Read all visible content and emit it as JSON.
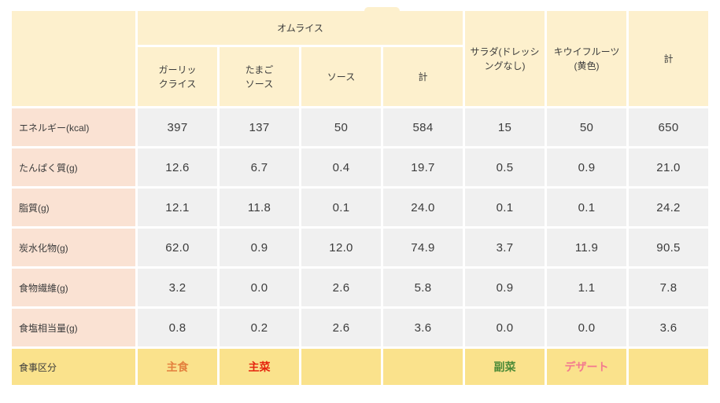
{
  "table": {
    "group_label": "オムライス",
    "sub_columns": [
      {
        "label": "ガーリッ\nクライス"
      },
      {
        "label": "たまご\nソース"
      },
      {
        "label": "ソース"
      },
      {
        "label": "計"
      },
      {
        "label": "サラダ(ドレッシ\nングなし)"
      },
      {
        "label": "キウイフルーツ\n(黄色)"
      },
      {
        "label": "計"
      }
    ],
    "rows": [
      {
        "label": "エネルギー(kcal)",
        "values": [
          "397",
          "137",
          "50",
          "584",
          "15",
          "50",
          "650"
        ]
      },
      {
        "label": "たんぱく質(g)",
        "values": [
          "12.6",
          "6.7",
          "0.4",
          "19.7",
          "0.5",
          "0.9",
          "21.0"
        ]
      },
      {
        "label": "脂質(g)",
        "values": [
          "12.1",
          "11.8",
          "0.1",
          "24.0",
          "0.1",
          "0.1",
          "24.2"
        ]
      },
      {
        "label": "炭水化物(g)",
        "values": [
          "62.0",
          "0.9",
          "12.0",
          "74.9",
          "3.7",
          "11.9",
          "90.5"
        ]
      },
      {
        "label": "食物繊維(g)",
        "values": [
          "3.2",
          "0.0",
          "2.6",
          "5.8",
          "0.9",
          "1.1",
          "7.8"
        ]
      },
      {
        "label": "食塩相当量(g)",
        "values": [
          "0.8",
          "0.2",
          "2.6",
          "3.6",
          "0.0",
          "0.0",
          "3.6"
        ]
      }
    ],
    "category_row": {
      "label": "食事区分",
      "values": [
        {
          "text": "主食",
          "color": "#e3803e"
        },
        {
          "text": "主菜",
          "color": "#e5250f"
        },
        {
          "text": "",
          "color": ""
        },
        {
          "text": "",
          "color": ""
        },
        {
          "text": "副菜",
          "color": "#4d8b38"
        },
        {
          "text": "デザート",
          "color": "#f3798f"
        },
        {
          "text": "",
          "color": ""
        }
      ]
    },
    "colors": {
      "header_bg": "#fdf0cd",
      "row_label_bg": "#fae2d3",
      "value_cell_bg": "#f0f0f0",
      "category_row_bg": "#fae28c",
      "grid_gap": "#ffffff",
      "text": "#3c3c3c"
    }
  },
  "chart_data": {
    "type": "table",
    "title": "",
    "column_groups": [
      {
        "label": "オムライス",
        "columns": [
          "ガーリックライス",
          "たまごソース",
          "ソース",
          "計"
        ]
      }
    ],
    "columns": [
      "",
      "ガーリックライス",
      "たまごソース",
      "ソース",
      "計",
      "サラダ(ドレッシングなし)",
      "キウイフルーツ(黄色)",
      "計"
    ],
    "rows": [
      [
        "エネルギー(kcal)",
        397,
        137,
        50,
        584,
        15,
        50,
        650
      ],
      [
        "たんぱく質(g)",
        12.6,
        6.7,
        0.4,
        19.7,
        0.5,
        0.9,
        21.0
      ],
      [
        "脂質(g)",
        12.1,
        11.8,
        0.1,
        24.0,
        0.1,
        0.1,
        24.2
      ],
      [
        "炭水化物(g)",
        62.0,
        0.9,
        12.0,
        74.9,
        3.7,
        11.9,
        90.5
      ],
      [
        "食物繊維(g)",
        3.2,
        0.0,
        2.6,
        5.8,
        0.9,
        1.1,
        7.8
      ],
      [
        "食塩相当量(g)",
        0.8,
        0.2,
        2.6,
        3.6,
        0.0,
        0.0,
        3.6
      ],
      [
        "食事区分",
        "主食",
        "主菜",
        "",
        "",
        "副菜",
        "デザート",
        ""
      ]
    ],
    "layout": {
      "grid": "white 3px gaps",
      "legend": "none"
    }
  }
}
